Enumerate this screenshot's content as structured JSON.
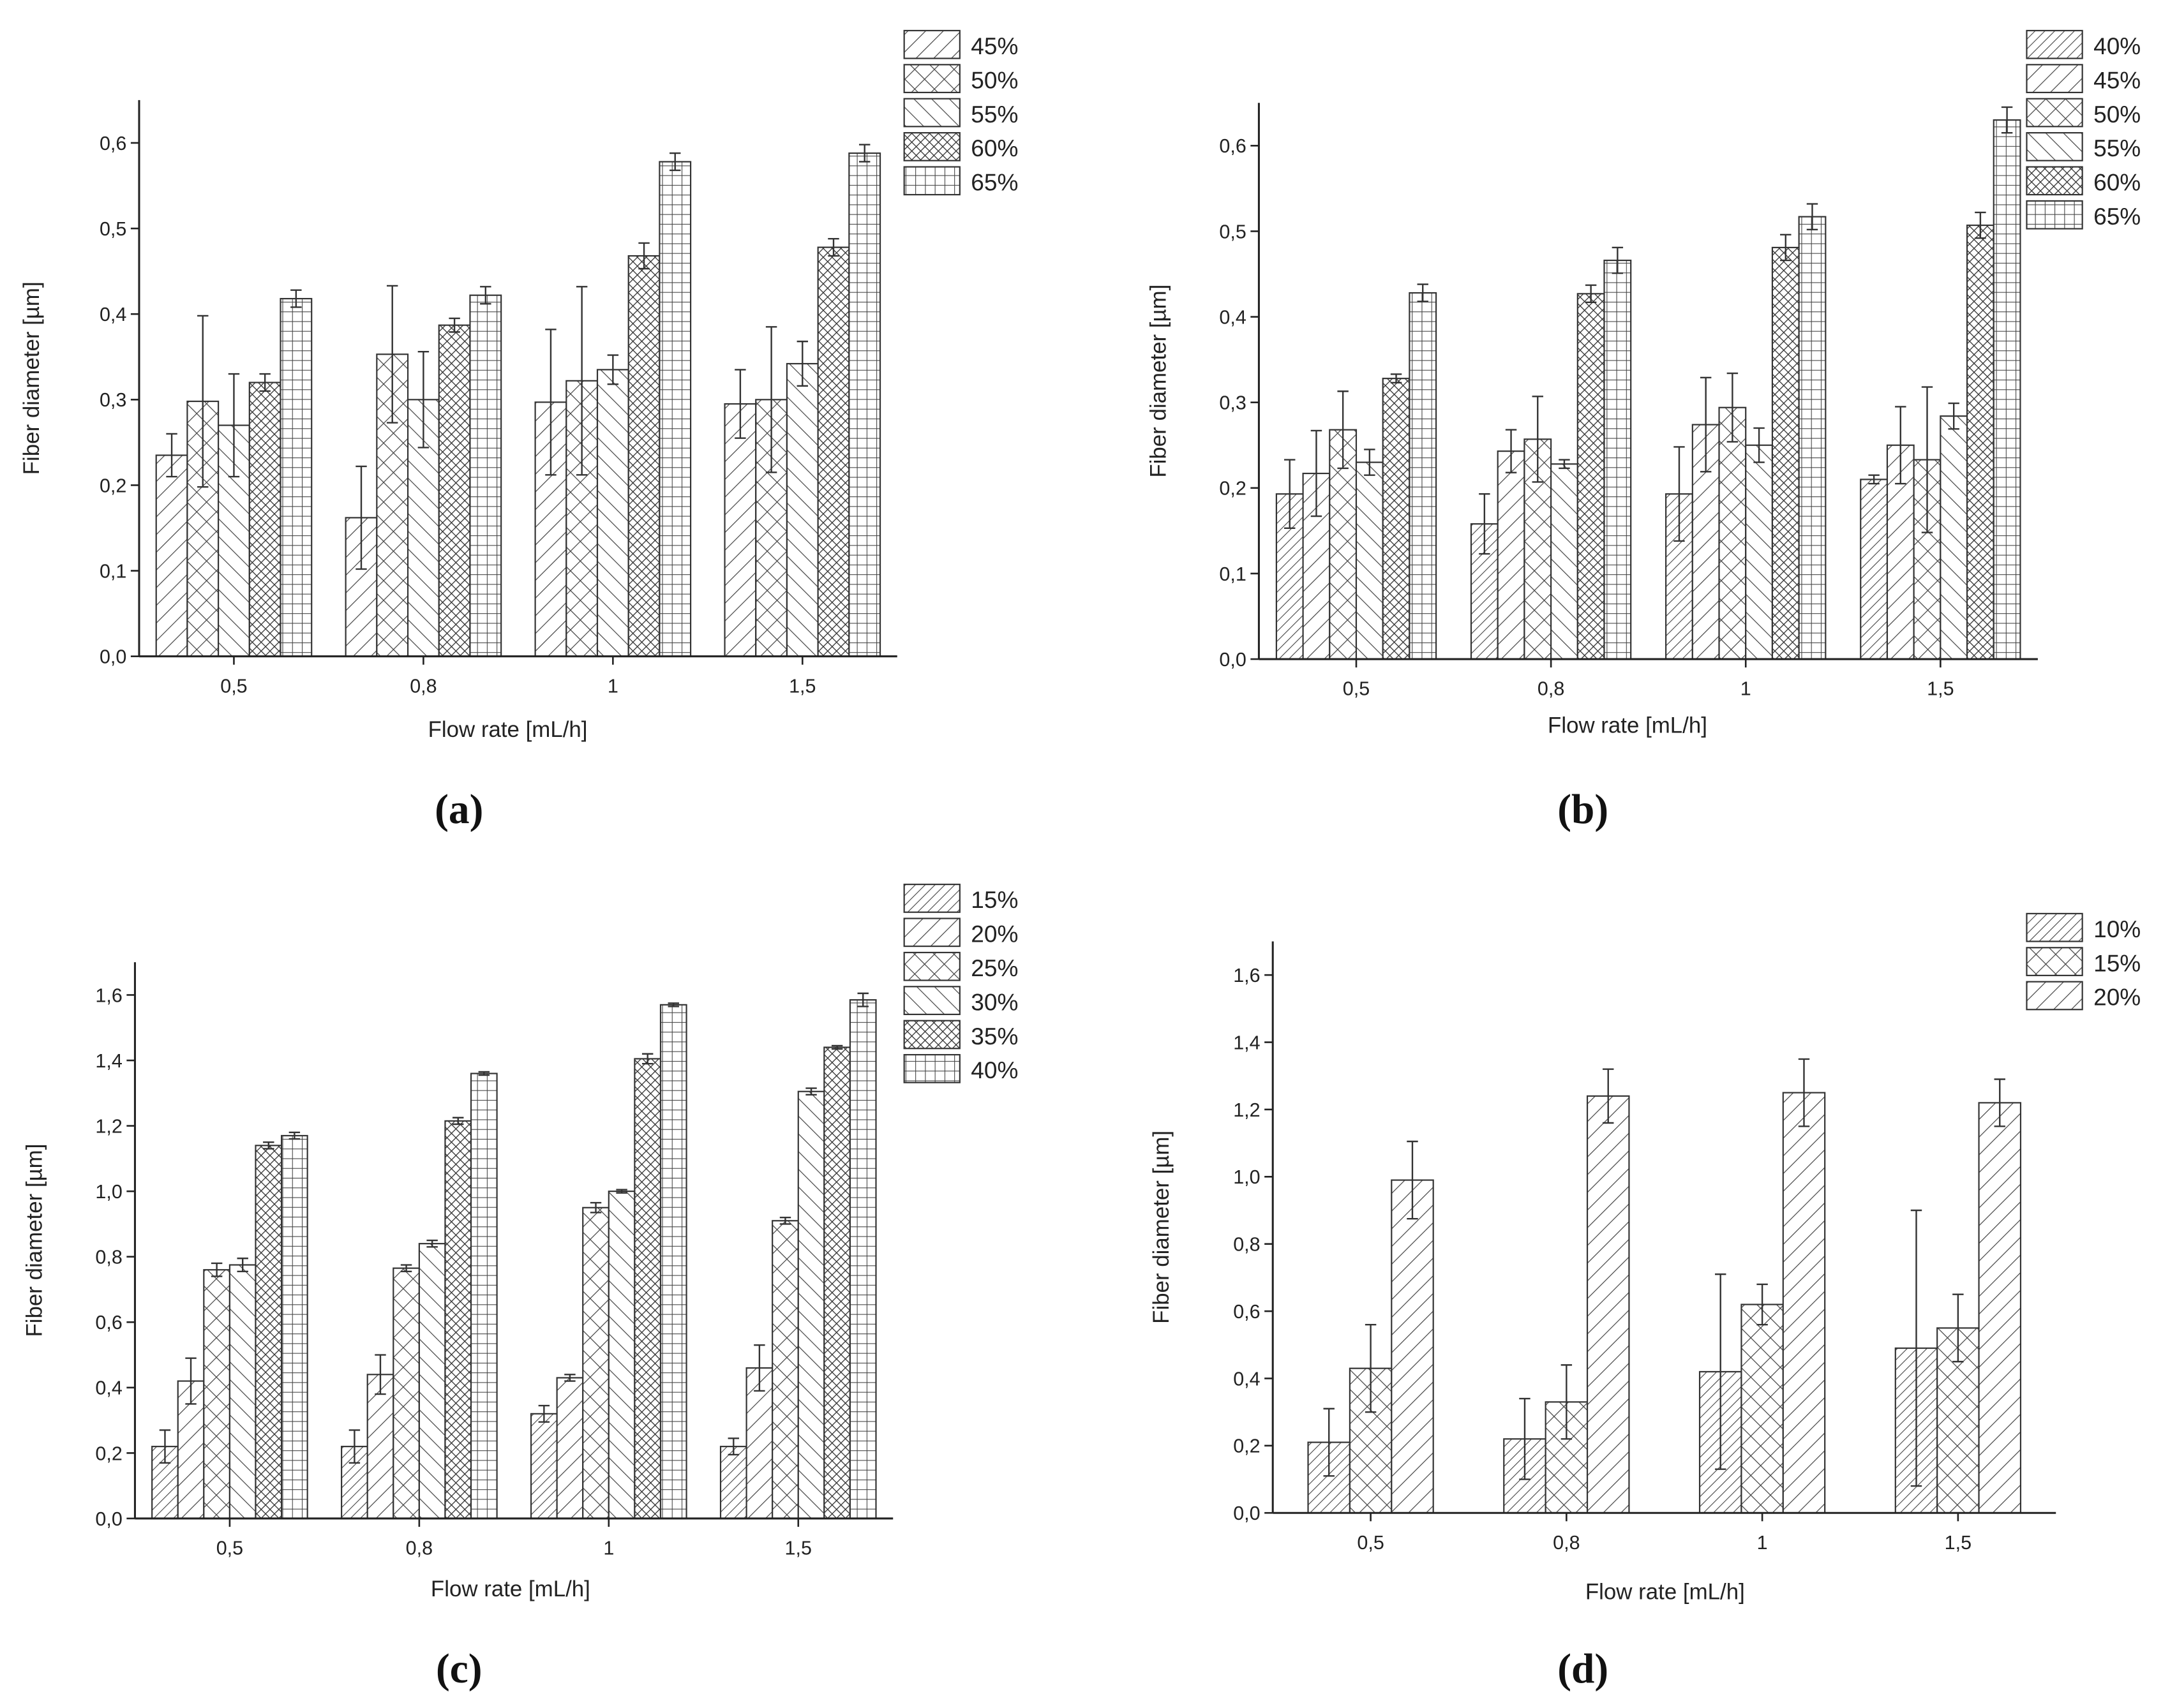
{
  "chart_data": [
    {
      "type": "bar",
      "label": "(a)",
      "xlabel": "Flow rate [mL/h]",
      "ylabel": "Fiber diameter [µm]",
      "categories": [
        "0,5",
        "0,8",
        "1",
        "1,5"
      ],
      "color": "#333333",
      "ylim": [
        0,
        0.65
      ],
      "yticks": [
        {
          "value": 0,
          "label": "0,0"
        },
        {
          "value": 0.1,
          "label": "0,1"
        },
        {
          "value": 0.2,
          "label": "0,2"
        },
        {
          "value": 0.3,
          "label": "0,3"
        },
        {
          "value": 0.4,
          "label": "0,4"
        },
        {
          "value": 0.5,
          "label": "0,5"
        },
        {
          "value": 0.6,
          "label": "0,6"
        }
      ],
      "series": [
        {
          "name": "45%",
          "hatch": "fwd",
          "values": [
            0.235,
            0.162,
            0.297,
            0.295
          ],
          "errors": [
            0.025,
            0.06,
            0.085,
            0.04
          ]
        },
        {
          "name": "50%",
          "hatch": "cross",
          "values": [
            0.298,
            0.353,
            0.322,
            0.3
          ],
          "errors": [
            0.1,
            0.08,
            0.11,
            0.085
          ]
        },
        {
          "name": "55%",
          "hatch": "back",
          "values": [
            0.27,
            0.3,
            0.335,
            0.342
          ],
          "errors": [
            0.06,
            0.056,
            0.017,
            0.026
          ]
        },
        {
          "name": "60%",
          "hatch": "dense-cross",
          "values": [
            0.32,
            0.387,
            0.468,
            0.478
          ],
          "errors": [
            0.01,
            0.008,
            0.015,
            0.01
          ]
        },
        {
          "name": "65%",
          "hatch": "grid",
          "values": [
            0.418,
            0.422,
            0.578,
            0.588
          ],
          "errors": [
            0.01,
            0.01,
            0.01,
            0.01
          ]
        }
      ]
    },
    {
      "type": "bar",
      "label": "(b)",
      "xlabel": "Flow rate [mL/h]",
      "ylabel": "Fiber diameter [µm]",
      "categories": [
        "0,5",
        "0,8",
        "1",
        "1,5"
      ],
      "color": "#333333",
      "ylim": [
        0,
        0.65
      ],
      "yticks": [
        {
          "value": 0,
          "label": "0,0"
        },
        {
          "value": 0.1,
          "label": "0,1"
        },
        {
          "value": 0.2,
          "label": "0,2"
        },
        {
          "value": 0.3,
          "label": "0,3"
        },
        {
          "value": 0.4,
          "label": "0,4"
        },
        {
          "value": 0.5,
          "label": "0,5"
        },
        {
          "value": 0.6,
          "label": "0,6"
        }
      ],
      "series": [
        {
          "name": "40%",
          "hatch": "dense-fwd",
          "values": [
            0.193,
            0.158,
            0.193,
            0.21
          ],
          "errors": [
            0.04,
            0.035,
            0.055,
            0.005
          ]
        },
        {
          "name": "45%",
          "hatch": "fwd",
          "values": [
            0.217,
            0.243,
            0.274,
            0.25
          ],
          "errors": [
            0.05,
            0.025,
            0.055,
            0.045
          ]
        },
        {
          "name": "50%",
          "hatch": "cross",
          "values": [
            0.268,
            0.257,
            0.294,
            0.233
          ],
          "errors": [
            0.045,
            0.05,
            0.04,
            0.085
          ]
        },
        {
          "name": "55%",
          "hatch": "back",
          "values": [
            0.23,
            0.228,
            0.25,
            0.284
          ],
          "errors": [
            0.015,
            0.005,
            0.02,
            0.015
          ]
        },
        {
          "name": "60%",
          "hatch": "dense-cross",
          "values": [
            0.328,
            0.427,
            0.481,
            0.507
          ],
          "errors": [
            0.005,
            0.01,
            0.015,
            0.015
          ]
        },
        {
          "name": "65%",
          "hatch": "grid",
          "values": [
            0.428,
            0.466,
            0.517,
            0.63
          ],
          "errors": [
            0.01,
            0.015,
            0.015,
            0.015
          ]
        }
      ]
    },
    {
      "type": "bar",
      "label": "(c)",
      "xlabel": "Flow rate [mL/h]",
      "ylabel": "Fiber diameter [µm]",
      "categories": [
        "0,5",
        "0,8",
        "1",
        "1,5"
      ],
      "color": "#333333",
      "ylim": [
        0,
        1.7
      ],
      "yticks": [
        {
          "value": 0,
          "label": "0,0"
        },
        {
          "value": 0.2,
          "label": "0,2"
        },
        {
          "value": 0.4,
          "label": "0,4"
        },
        {
          "value": 0.6,
          "label": "0,6"
        },
        {
          "value": 0.8,
          "label": "0,8"
        },
        {
          "value": 1,
          "label": "1,0"
        },
        {
          "value": 1.2,
          "label": "1,2"
        },
        {
          "value": 1.4,
          "label": "1,4"
        },
        {
          "value": 1.6,
          "label": "1,6"
        }
      ],
      "series": [
        {
          "name": "15%",
          "hatch": "dense-fwd",
          "values": [
            0.22,
            0.22,
            0.32,
            0.22
          ],
          "errors": [
            0.05,
            0.05,
            0.025,
            0.025
          ]
        },
        {
          "name": "20%",
          "hatch": "fwd",
          "values": [
            0.42,
            0.44,
            0.43,
            0.46
          ],
          "errors": [
            0.07,
            0.06,
            0.01,
            0.07
          ]
        },
        {
          "name": "25%",
          "hatch": "cross",
          "values": [
            0.76,
            0.765,
            0.95,
            0.91
          ],
          "errors": [
            0.02,
            0.01,
            0.015,
            0.01
          ]
        },
        {
          "name": "30%",
          "hatch": "back",
          "values": [
            0.775,
            0.84,
            1.0,
            1.305
          ],
          "errors": [
            0.02,
            0.01,
            0.005,
            0.01
          ]
        },
        {
          "name": "35%",
          "hatch": "dense-cross",
          "values": [
            1.14,
            1.215,
            1.405,
            1.44
          ],
          "errors": [
            0.01,
            0.01,
            0.015,
            0.005
          ]
        },
        {
          "name": "40%",
          "hatch": "grid",
          "values": [
            1.17,
            1.36,
            1.57,
            1.585
          ],
          "errors": [
            0.01,
            0.005,
            0.005,
            0.02
          ]
        }
      ]
    },
    {
      "type": "bar",
      "label": "(d)",
      "xlabel": "Flow rate [mL/h]",
      "ylabel": "Fiber diameter [µm]",
      "categories": [
        "0,5",
        "0,8",
        "1",
        "1,5"
      ],
      "color": "#333333",
      "ylim": [
        0,
        1.7
      ],
      "yticks": [
        {
          "value": 0,
          "label": "0,0"
        },
        {
          "value": 0.2,
          "label": "0,2"
        },
        {
          "value": 0.4,
          "label": "0,4"
        },
        {
          "value": 0.6,
          "label": "0,6"
        },
        {
          "value": 0.8,
          "label": "0,8"
        },
        {
          "value": 1,
          "label": "1,0"
        },
        {
          "value": 1.2,
          "label": "1,2"
        },
        {
          "value": 1.4,
          "label": "1,4"
        },
        {
          "value": 1.6,
          "label": "1,6"
        }
      ],
      "series": [
        {
          "name": "10%",
          "hatch": "dense-fwd",
          "values": [
            0.21,
            0.22,
            0.42,
            0.49
          ],
          "errors": [
            0.1,
            0.12,
            0.29,
            0.41
          ]
        },
        {
          "name": "15%",
          "hatch": "cross",
          "values": [
            0.43,
            0.33,
            0.62,
            0.55
          ],
          "errors": [
            0.13,
            0.11,
            0.06,
            0.1
          ]
        },
        {
          "name": "20%",
          "hatch": "fwd",
          "values": [
            0.99,
            1.24,
            1.25,
            1.22
          ],
          "errors": [
            0.115,
            0.08,
            0.1,
            0.07
          ]
        }
      ]
    }
  ]
}
